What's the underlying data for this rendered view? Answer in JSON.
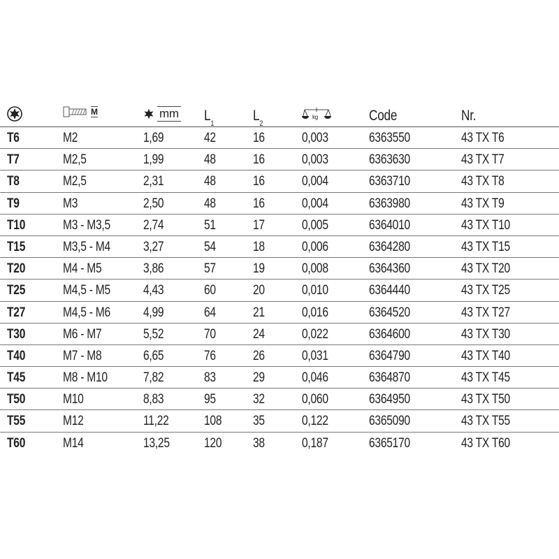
{
  "header": {
    "drive_icon": "torx-drive-icon",
    "thread_icon": "screw-thread-icon",
    "thread_label": "M",
    "size_icon": "torx-star-icon",
    "size_label": "mm",
    "l1": "L",
    "l1_sub": "1",
    "l2": "L",
    "l2_sub": "2",
    "weight_icon": "scale-icon",
    "weight_label": "kg",
    "code": "Code",
    "nr": "Nr."
  },
  "rows": [
    [
      "T6",
      "M2",
      "1,69",
      "42",
      "16",
      "0,003",
      "6363550",
      "43 TX T6"
    ],
    [
      "T7",
      "M2,5",
      "1,99",
      "48",
      "16",
      "0,003",
      "6363630",
      "43 TX T7"
    ],
    [
      "T8",
      "M2,5",
      "2,31",
      "48",
      "16",
      "0,004",
      "6363710",
      "43 TX T8"
    ],
    [
      "T9",
      "M3",
      "2,50",
      "48",
      "16",
      "0,004",
      "6363980",
      "43 TX T9"
    ],
    [
      "T10",
      "M3 - M3,5",
      "2,74",
      "51",
      "17",
      "0,005",
      "6364010",
      "43 TX T10"
    ],
    [
      "T15",
      "M3,5 - M4",
      "3,27",
      "54",
      "18",
      "0,006",
      "6364280",
      "43 TX T15"
    ],
    [
      "T20",
      "M4 - M5",
      "3,86",
      "57",
      "19",
      "0,008",
      "6364360",
      "43 TX T20"
    ],
    [
      "T25",
      "M4,5 - M5",
      "4,43",
      "60",
      "20",
      "0,010",
      "6364440",
      "43 TX T25"
    ],
    [
      "T27",
      "M4,5 - M6",
      "4,99",
      "64",
      "21",
      "0,016",
      "6364520",
      "43 TX T27"
    ],
    [
      "T30",
      "M6 - M7",
      "5,52",
      "70",
      "24",
      "0,022",
      "6364600",
      "43 TX T30"
    ],
    [
      "T40",
      "M7 - M8",
      "6,65",
      "76",
      "26",
      "0,031",
      "6364790",
      "43 TX T40"
    ],
    [
      "T45",
      "M8 - M10",
      "7,82",
      "83",
      "29",
      "0,046",
      "6364870",
      "43 TX T45"
    ],
    [
      "T50",
      "M10",
      "8,83",
      "95",
      "32",
      "0,060",
      "6364950",
      "43 TX T50"
    ],
    [
      "T55",
      "M12",
      "11,22",
      "108",
      "35",
      "0,122",
      "6365090",
      "43 TX T55"
    ],
    [
      "T60",
      "M14",
      "13,25",
      "120",
      "38",
      "0,187",
      "6365170",
      "43 TX T60"
    ]
  ]
}
